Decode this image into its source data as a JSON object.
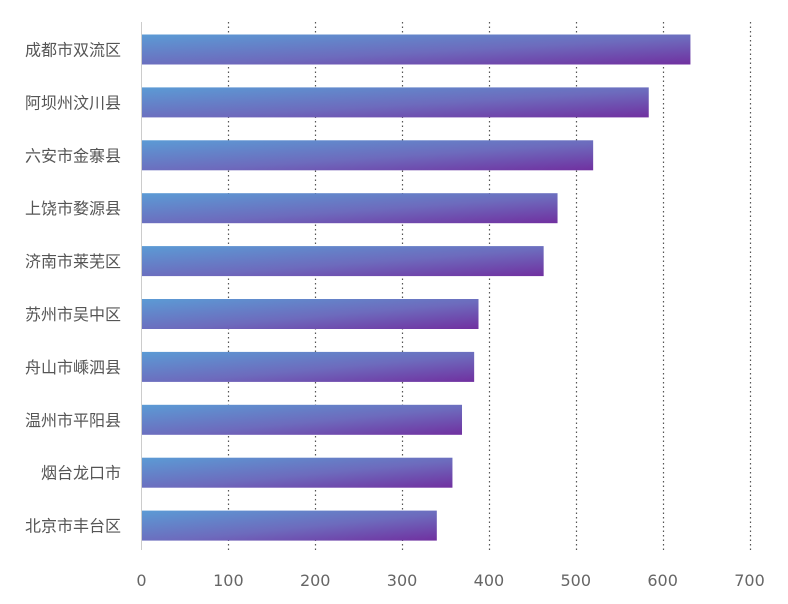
{
  "chart_data": {
    "type": "bar",
    "orientation": "horizontal",
    "title": "",
    "xlabel": "",
    "ylabel": "",
    "categories": [
      "成都市双流区",
      "阿坝州汶川县",
      "六安市金寨县",
      "上饶市婺源县",
      "济南市莱芜区",
      "苏州市吴中区",
      "舟山市嵊泗县",
      "温州市平阳县",
      "烟台龙口市",
      "北京市丰台区"
    ],
    "values": [
      632,
      584,
      520,
      479,
      463,
      388,
      383,
      369,
      358,
      340
    ],
    "xlim": [
      0,
      700
    ],
    "xticks": [
      0,
      100,
      200,
      300,
      400,
      500,
      600,
      700
    ],
    "grid": "vertical dotted",
    "legend": "none",
    "colors": {
      "bar_start": "#5b9bd5",
      "bar_mid": "#6d6bbd",
      "bar_end": "#7030a0",
      "grid": "#555555",
      "axis": "#cccccc",
      "label": "#555555"
    }
  }
}
